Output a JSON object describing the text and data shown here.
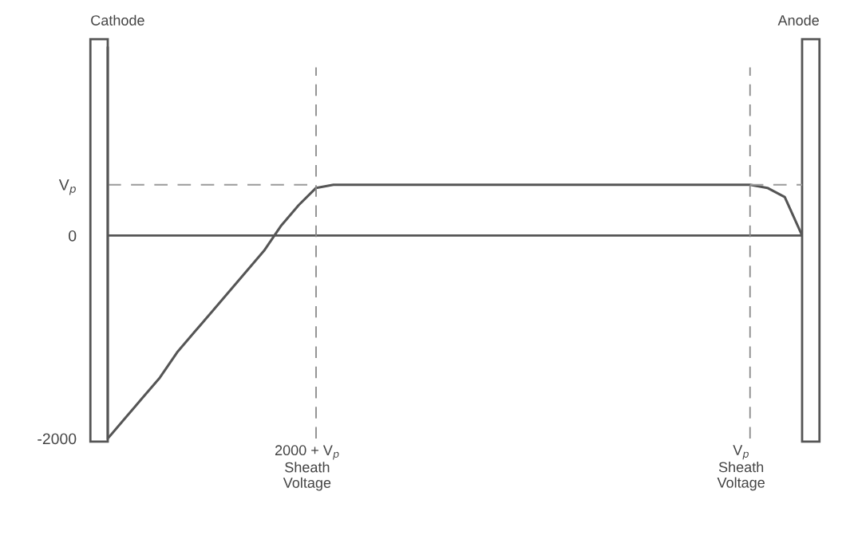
{
  "chart_data": {
    "type": "line",
    "categories": [
      null,
      null,
      null,
      null,
      null,
      null,
      null,
      null,
      null,
      null,
      null,
      null,
      null,
      null,
      null,
      null,
      null,
      null,
      null,
      null,
      null,
      null,
      null,
      null,
      null,
      null,
      null,
      null,
      null,
      null,
      null,
      null,
      null,
      null,
      null,
      null,
      null,
      null,
      null,
      null,
      null
    ],
    "series": [
      {
        "color": "#555555",
        "values": [
          -2000,
          -1800,
          -1600,
          -1400,
          -1150,
          -950,
          -750,
          -550,
          -350,
          -150,
          100,
          300,
          470,
          500,
          500,
          500,
          500,
          500,
          500,
          500,
          500,
          500,
          500,
          500,
          500,
          500,
          500,
          500,
          500,
          500,
          500,
          500,
          500,
          500,
          500,
          500,
          500,
          500,
          470,
          380,
          0
        ]
      },
      {
        "color": "#9a9a9a",
        "line_style": "dashed",
        "values": [
          500,
          500,
          500,
          500,
          500,
          500,
          500,
          500,
          500,
          500,
          500,
          500,
          500,
          null,
          null,
          null,
          null,
          null,
          null,
          null,
          null,
          null,
          null,
          null,
          null,
          null,
          null,
          null,
          null,
          null,
          null,
          null,
          null,
          null,
          null,
          null,
          null,
          null,
          null,
          null,
          null
        ]
      },
      {
        "color": "#9a9a9a",
        "line_style": "dashed",
        "values": [
          null,
          null,
          null,
          null,
          null,
          null,
          null,
          null,
          null,
          null,
          null,
          null,
          null,
          null,
          null,
          null,
          null,
          null,
          null,
          null,
          null,
          null,
          null,
          null,
          null,
          null,
          null,
          null,
          null,
          null,
          null,
          null,
          null,
          null,
          null,
          null,
          null,
          500,
          500,
          500,
          500
        ]
      }
    ],
    "ylim": [
      -2000,
      1850
    ],
    "yticks": [
      -2000,
      0,
      {
        "value": 500,
        "label": "V$_{p}$"
      }
    ],
    "tick_labels": "y",
    "grid": false,
    "ref_lines": [
      {
        "axis": "y",
        "value": 0,
        "color": "#555555",
        "line_style": "solid"
      }
    ],
    "annotations": [
      "Cathode",
      "Anode",
      "2000 + V$_{p}$\nSheath\nVoltage",
      "V$_{p}$\nSheath\nVoltage"
    ]
  }
}
